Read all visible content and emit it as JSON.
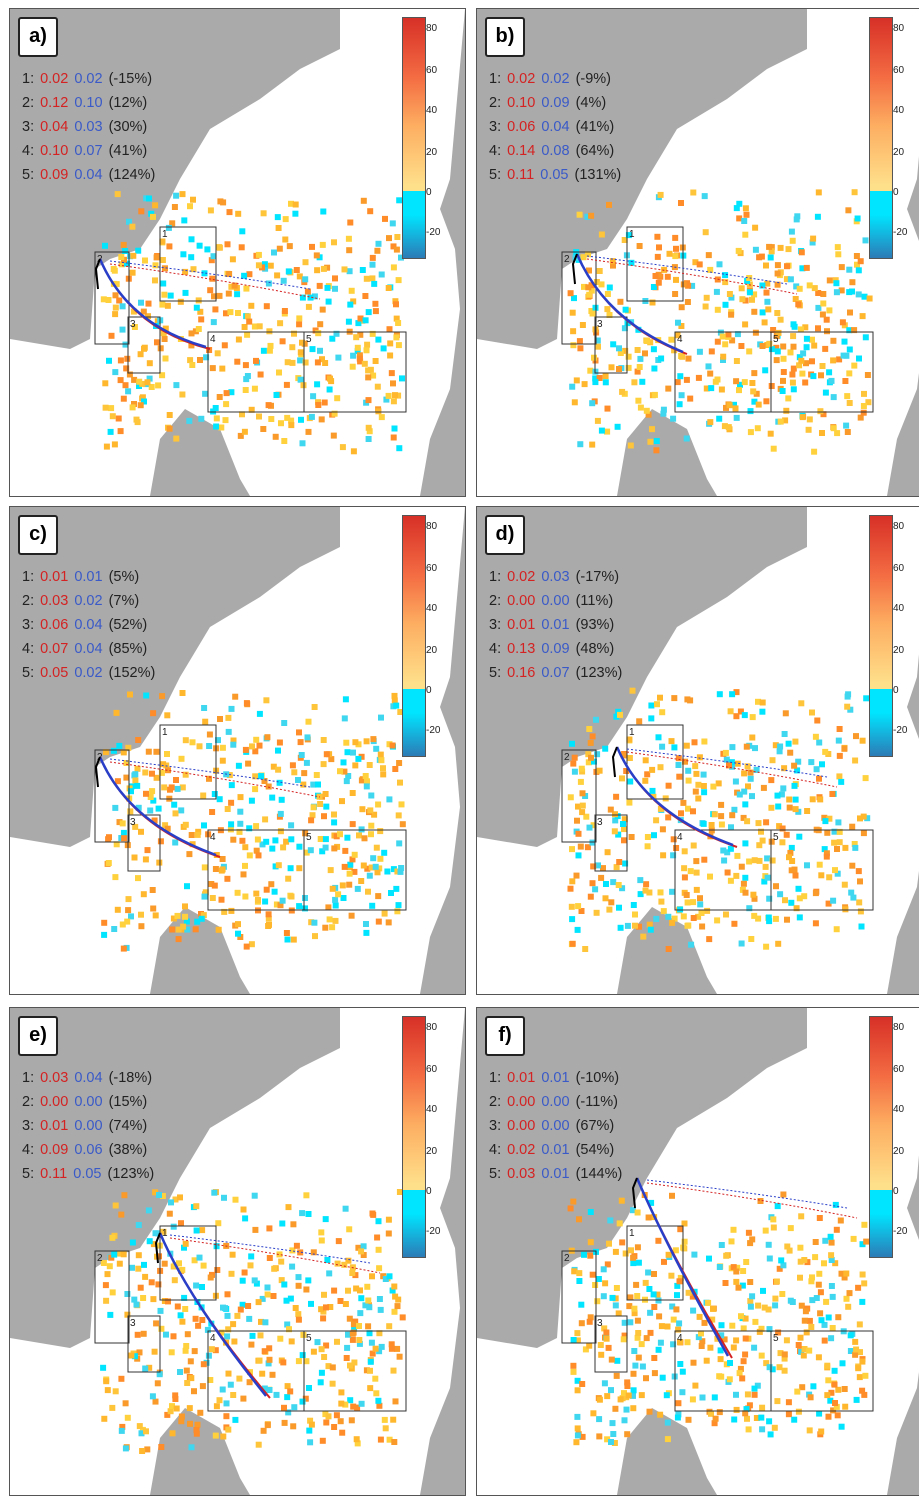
{
  "colorbar": {
    "ticks": [
      "80",
      "60",
      "40",
      "20",
      "0",
      "-20"
    ],
    "colors": [
      "#d73027",
      "#f46d43",
      "#fdae61",
      "#fee08b",
      "#00e5ff",
      "#2c7bb6"
    ]
  },
  "panels": [
    {
      "label": "a)",
      "rows": [
        {
          "n": "1:",
          "red": "0.02",
          "blue": "0.02",
          "pct": "(-15%)"
        },
        {
          "n": "2:",
          "red": "0.12",
          "blue": "0.10",
          "pct": "(12%)"
        },
        {
          "n": "3:",
          "red": "0.04",
          "blue": "0.03",
          "pct": "(30%)"
        },
        {
          "n": "4:",
          "red": "0.10",
          "blue": "0.07",
          "pct": "(41%)"
        },
        {
          "n": "5:",
          "red": "0.09",
          "blue": "0.04",
          "pct": "(124%)"
        }
      ]
    },
    {
      "label": "b)",
      "rows": [
        {
          "n": "1:",
          "red": "0.02",
          "blue": "0.02",
          "pct": "(-9%)"
        },
        {
          "n": "2:",
          "red": "0.10",
          "blue": "0.09",
          "pct": "(4%)"
        },
        {
          "n": "3:",
          "red": "0.06",
          "blue": "0.04",
          "pct": "(41%)"
        },
        {
          "n": "4:",
          "red": "0.14",
          "blue": "0.08",
          "pct": "(64%)"
        },
        {
          "n": "5:",
          "red": "0.11",
          "blue": "0.05",
          "pct": "(131%)"
        }
      ]
    },
    {
      "label": "c)",
      "rows": [
        {
          "n": "1:",
          "red": "0.01",
          "blue": "0.01",
          "pct": "(5%)"
        },
        {
          "n": "2:",
          "red": "0.03",
          "blue": "0.02",
          "pct": "(7%)"
        },
        {
          "n": "3:",
          "red": "0.06",
          "blue": "0.04",
          "pct": "(52%)"
        },
        {
          "n": "4:",
          "red": "0.07",
          "blue": "0.04",
          "pct": "(85%)"
        },
        {
          "n": "5:",
          "red": "0.05",
          "blue": "0.02",
          "pct": "(152%)"
        }
      ]
    },
    {
      "label": "d)",
      "rows": [
        {
          "n": "1:",
          "red": "0.02",
          "blue": "0.03",
          "pct": "(-17%)"
        },
        {
          "n": "2:",
          "red": "0.00",
          "blue": "0.00",
          "pct": "(11%)"
        },
        {
          "n": "3:",
          "red": "0.01",
          "blue": "0.01",
          "pct": "(93%)"
        },
        {
          "n": "4:",
          "red": "0.13",
          "blue": "0.09",
          "pct": "(48%)"
        },
        {
          "n": "5:",
          "red": "0.16",
          "blue": "0.07",
          "pct": "(123%)"
        }
      ]
    },
    {
      "label": "e)",
      "rows": [
        {
          "n": "1:",
          "red": "0.03",
          "blue": "0.04",
          "pct": "(-18%)"
        },
        {
          "n": "2:",
          "red": "0.00",
          "blue": "0.00",
          "pct": "(15%)"
        },
        {
          "n": "3:",
          "red": "0.01",
          "blue": "0.00",
          "pct": "(74%)"
        },
        {
          "n": "4:",
          "red": "0.09",
          "blue": "0.06",
          "pct": "(38%)"
        },
        {
          "n": "5:",
          "red": "0.11",
          "blue": "0.05",
          "pct": "(123%)"
        }
      ]
    },
    {
      "label": "f)",
      "rows": [
        {
          "n": "1:",
          "red": "0.01",
          "blue": "0.01",
          "pct": "(-10%)"
        },
        {
          "n": "2:",
          "red": "0.00",
          "blue": "0.00",
          "pct": "(-11%)"
        },
        {
          "n": "3:",
          "red": "0.00",
          "blue": "0.00",
          "pct": "(67%)"
        },
        {
          "n": "4:",
          "red": "0.02",
          "blue": "0.01",
          "pct": "(54%)"
        },
        {
          "n": "5:",
          "red": "0.03",
          "blue": "0.01",
          "pct": "(144%)"
        }
      ]
    }
  ],
  "region_labels": [
    "1",
    "2",
    "3",
    "4",
    "5"
  ]
}
